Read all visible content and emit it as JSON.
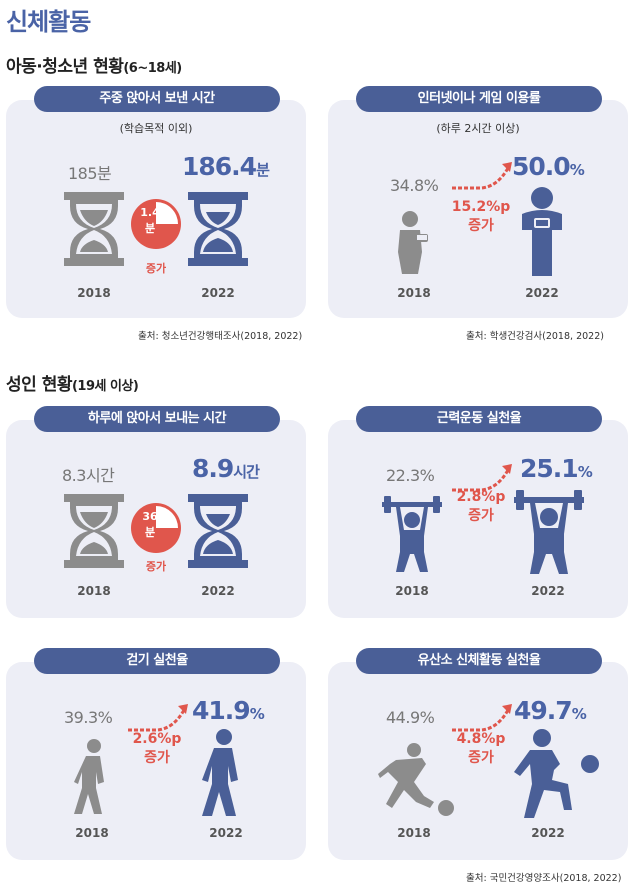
{
  "page_title": "신체활동",
  "sections": {
    "youth": {
      "title": "아동·청소년 현황",
      "subtitle": "(6~18세)"
    },
    "adult": {
      "title": "성인 현황",
      "subtitle": "(19세 이상)"
    }
  },
  "colors": {
    "primary": "#4a63a6",
    "pill": "#4a5f97",
    "gray_icon": "#8c8c8c",
    "accent_red": "#e0564c",
    "card_bg": "#edeef6"
  },
  "cards": {
    "youth_sitting": {
      "title": "주중 앉아서 보낸 시간",
      "note": "(학습목적 이외)",
      "old_value": "185분",
      "new_value": "186.4",
      "new_unit": "분",
      "badge_value": "1.4",
      "badge_unit": "분",
      "increase_label": "증가",
      "year_old": "2018",
      "year_new": "2022",
      "icons": [
        "hourglass-icon",
        "hourglass-icon"
      ]
    },
    "youth_internet": {
      "title": "인터넷이나 게임 이용률",
      "note": "(하루 2시간 이상)",
      "old_value": "34.8%",
      "new_value": "50.0",
      "new_unit": "%",
      "increase_value": "15.2%p",
      "increase_label": "증가",
      "year_old": "2018",
      "year_new": "2022",
      "icons": [
        "gamer-person-icon",
        "gamer-person-icon"
      ]
    },
    "adult_sitting": {
      "title": "하루에 앉아서 보내는 시간",
      "old_value": "8.3시간",
      "new_value": "8.9",
      "new_unit": "시간",
      "badge_value": "36",
      "badge_unit": "분",
      "increase_label": "증가",
      "year_old": "2018",
      "year_new": "2022",
      "icons": [
        "hourglass-icon",
        "hourglass-icon"
      ]
    },
    "adult_strength": {
      "title": "근력운동 실천율",
      "old_value": "22.3%",
      "new_value": "25.1",
      "new_unit": "%",
      "increase_value": "2.8%p",
      "increase_label": "증가",
      "year_old": "2018",
      "year_new": "2022",
      "icons": [
        "weightlifter-icon",
        "weightlifter-icon"
      ]
    },
    "adult_walking": {
      "title": "걷기 실천율",
      "old_value": "39.3%",
      "new_value": "41.9",
      "new_unit": "%",
      "increase_value": "2.6%p",
      "increase_label": "증가",
      "year_old": "2018",
      "year_new": "2022",
      "icons": [
        "walking-person-icon",
        "walking-person-icon"
      ]
    },
    "adult_aerobic": {
      "title": "유산소 신체활동 실천율",
      "old_value": "44.9%",
      "new_value": "49.7",
      "new_unit": "%",
      "increase_value": "4.8%p",
      "increase_label": "증가",
      "year_old": "2018",
      "year_new": "2022",
      "icons": [
        "soccer-player-icon",
        "soccer-player-icon"
      ]
    }
  },
  "sources": {
    "youth_left": "출처: 청소년건강행태조사(2018, 2022)",
    "youth_right": "출처: 학생건강검사(2018, 2022)",
    "adult": "출처: 국민건강영양조사(2018, 2022)"
  },
  "chart_data": [
    {
      "type": "table",
      "title": "주중 앉아서 보낸 시간",
      "categories": [
        "2018",
        "2022"
      ],
      "values": [
        185,
        186.4
      ],
      "unit": "분",
      "change": 1.4
    },
    {
      "type": "table",
      "title": "인터넷이나 게임 이용률",
      "categories": [
        "2018",
        "2022"
      ],
      "values": [
        34.8,
        50.0
      ],
      "unit": "%",
      "change": 15.2
    },
    {
      "type": "table",
      "title": "하루에 앉아서 보내는 시간",
      "categories": [
        "2018",
        "2022"
      ],
      "values": [
        8.3,
        8.9
      ],
      "unit": "시간",
      "change_minutes": 36
    },
    {
      "type": "table",
      "title": "근력운동 실천율",
      "categories": [
        "2018",
        "2022"
      ],
      "values": [
        22.3,
        25.1
      ],
      "unit": "%",
      "change": 2.8
    },
    {
      "type": "table",
      "title": "걷기 실천율",
      "categories": [
        "2018",
        "2022"
      ],
      "values": [
        39.3,
        41.9
      ],
      "unit": "%",
      "change": 2.6
    },
    {
      "type": "table",
      "title": "유산소 신체활동 실천율",
      "categories": [
        "2018",
        "2022"
      ],
      "values": [
        44.9,
        49.7
      ],
      "unit": "%",
      "change": 4.8
    }
  ]
}
